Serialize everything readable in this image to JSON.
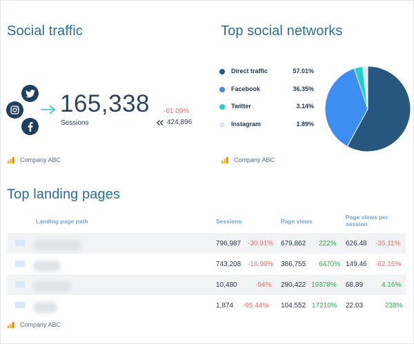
{
  "social_traffic": {
    "title": "Social traffic",
    "total_sessions": "165,338",
    "sessions_label": "Sessions",
    "change": "-61.09%",
    "previous": "424,896",
    "footer": "Company ABC",
    "icons": [
      "twitter-icon",
      "instagram-icon",
      "facebook-icon",
      "arrow-right-icon"
    ],
    "colors": {
      "icon_bg": "#1f3f5e",
      "arrow": "#23c8c8",
      "negative": "#f06a6a"
    }
  },
  "top_social_networks": {
    "title": "Top social networks",
    "footer": "Company ABC",
    "chart_data": {
      "type": "pie",
      "title": "",
      "legend_position": "left",
      "categories": [
        "Direct traffic",
        "Facebook",
        "Twitter",
        "Instagram"
      ],
      "values": [
        57.01,
        36.35,
        3.14,
        1.89
      ],
      "labels": [
        "57.01%",
        "36.35%",
        "3.14%",
        "1.89%"
      ],
      "colors": [
        "#27577f",
        "#3d8ef0",
        "#1fd0d0",
        "#dce9f7"
      ]
    }
  },
  "top_landing_pages": {
    "title": "Top landing pages",
    "footer": "Company ABC",
    "headers": {
      "path": "Landing page path",
      "sessions": "Sessions",
      "page_views": "Page views",
      "page_views_per_session_1": "Page views per",
      "page_views_per_session_2": "session"
    },
    "rows": [
      {
        "sessions": "796,987",
        "sessions_change": "-30.91%",
        "page_views": "679,862",
        "page_views_change": "222%",
        "pvps": "626.48",
        "pvps_change": "-35.11%"
      },
      {
        "sessions": "743,208",
        "sessions_change": "-16.99%",
        "page_views": "386,755",
        "page_views_change": "6470%",
        "pvps": "149.46",
        "pvps_change": "-62.15%"
      },
      {
        "sessions": "10,480",
        "sessions_change": "-94%",
        "page_views": "290,422",
        "page_views_change": "19378%",
        "pvps": "68.89",
        "pvps_change": "4.16%"
      },
      {
        "sessions": "1,874",
        "sessions_change": "-95.44%",
        "page_views": "104,552",
        "page_views_change": "17210%",
        "pvps": "22.03",
        "pvps_change": "238%"
      }
    ]
  }
}
